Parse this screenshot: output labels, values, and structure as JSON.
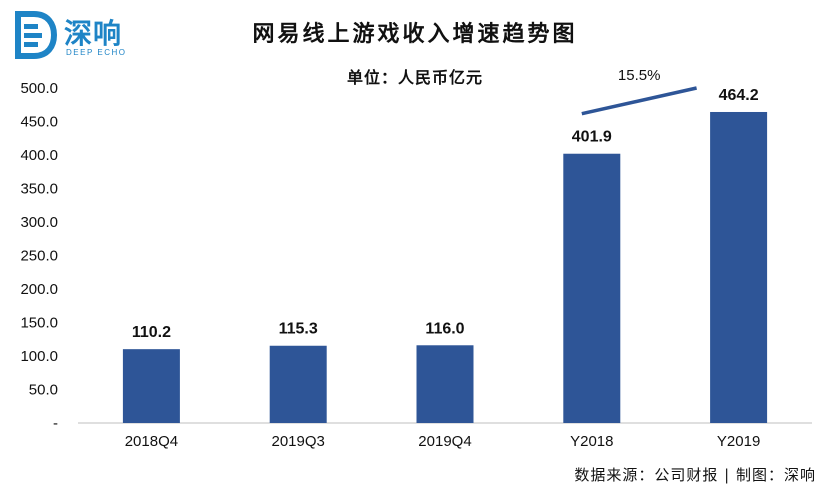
{
  "logo": {
    "zh": "深响",
    "en": "DEEP ECHO",
    "color": "#1e84c6"
  },
  "chart_title": "网易线上游戏收入增速趋势图",
  "unit_label": "单位：人民币亿元",
  "source_label": "数据来源：公司财报 | 制图：深响",
  "chart_data": {
    "type": "bar",
    "title": "网易线上游戏收入增速趋势图",
    "subtitle": "单位：人民币亿元",
    "categories": [
      "2018Q4",
      "2019Q3",
      "2019Q4",
      "Y2018",
      "Y2019"
    ],
    "values": [
      110.2,
      115.3,
      116.0,
      401.9,
      464.2
    ],
    "value_labels": [
      "110.2",
      "115.3",
      "116.0",
      "401.9",
      "464.2"
    ],
    "ylim": [
      0,
      500
    ],
    "yticks": [
      0,
      50,
      100,
      150,
      200,
      250,
      300,
      350,
      400,
      450,
      500
    ],
    "ytick_labels": [
      "-",
      "50.0",
      "100.0",
      "150.0",
      "200.0",
      "250.0",
      "300.0",
      "350.0",
      "400.0",
      "450.0",
      "500.0"
    ],
    "bar_color": "#2e5597",
    "annotation": {
      "text": "15.5%",
      "from": "Y2018",
      "to": "Y2019",
      "line_color": "#2e5597"
    },
    "grid": false,
    "legend": "none"
  }
}
